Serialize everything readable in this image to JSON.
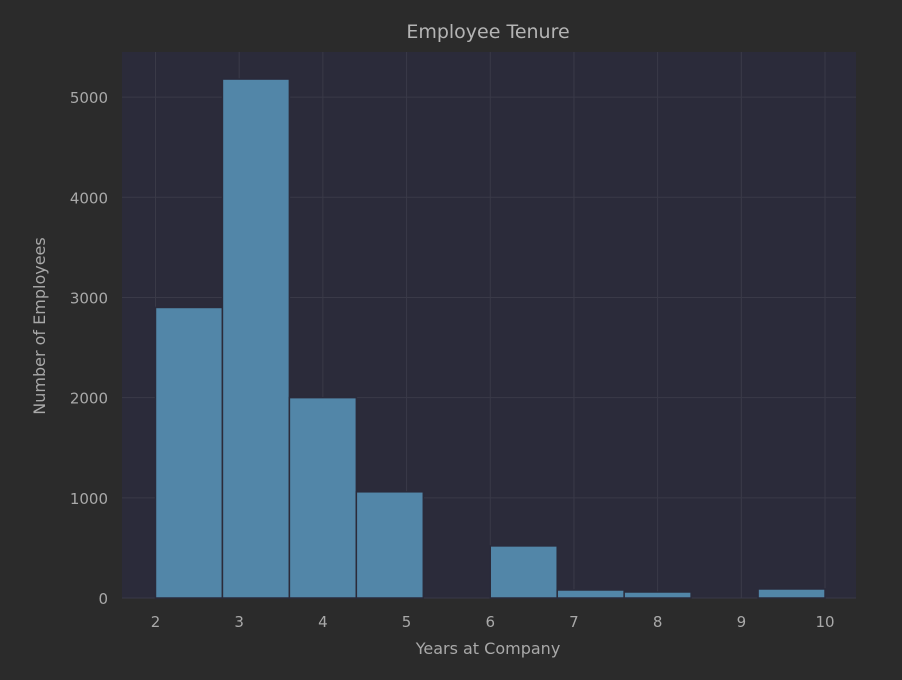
{
  "colors": {
    "figure_bg": "#2b2b2b",
    "plot_bg": "#2b2b3a",
    "grid": "#3a3a48",
    "bar_fill": "#5286a8",
    "bar_edge": "#2b2b3a",
    "text": "#a9a9a9"
  },
  "chart_data": {
    "type": "bar",
    "title": "Employee Tenure",
    "xlabel": "Years at Company",
    "ylabel": "Number of Employees",
    "xlim": [
      1.6,
      10.37
    ],
    "ylim": [
      0,
      5450
    ],
    "xticks": [
      2,
      3,
      4,
      5,
      6,
      7,
      8,
      9,
      10
    ],
    "yticks": [
      0,
      1000,
      2000,
      3000,
      4000,
      5000
    ],
    "grid": true,
    "bin_width": 0.8,
    "bins": [
      {
        "start": 2.0,
        "value": 2900
      },
      {
        "start": 2.8,
        "value": 5180
      },
      {
        "start": 3.6,
        "value": 2000
      },
      {
        "start": 4.4,
        "value": 1060
      },
      {
        "start": 5.2,
        "value": 0
      },
      {
        "start": 6.0,
        "value": 520
      },
      {
        "start": 6.8,
        "value": 80
      },
      {
        "start": 7.6,
        "value": 60
      },
      {
        "start": 8.4,
        "value": 0
      },
      {
        "start": 9.2,
        "value": 90
      }
    ]
  }
}
